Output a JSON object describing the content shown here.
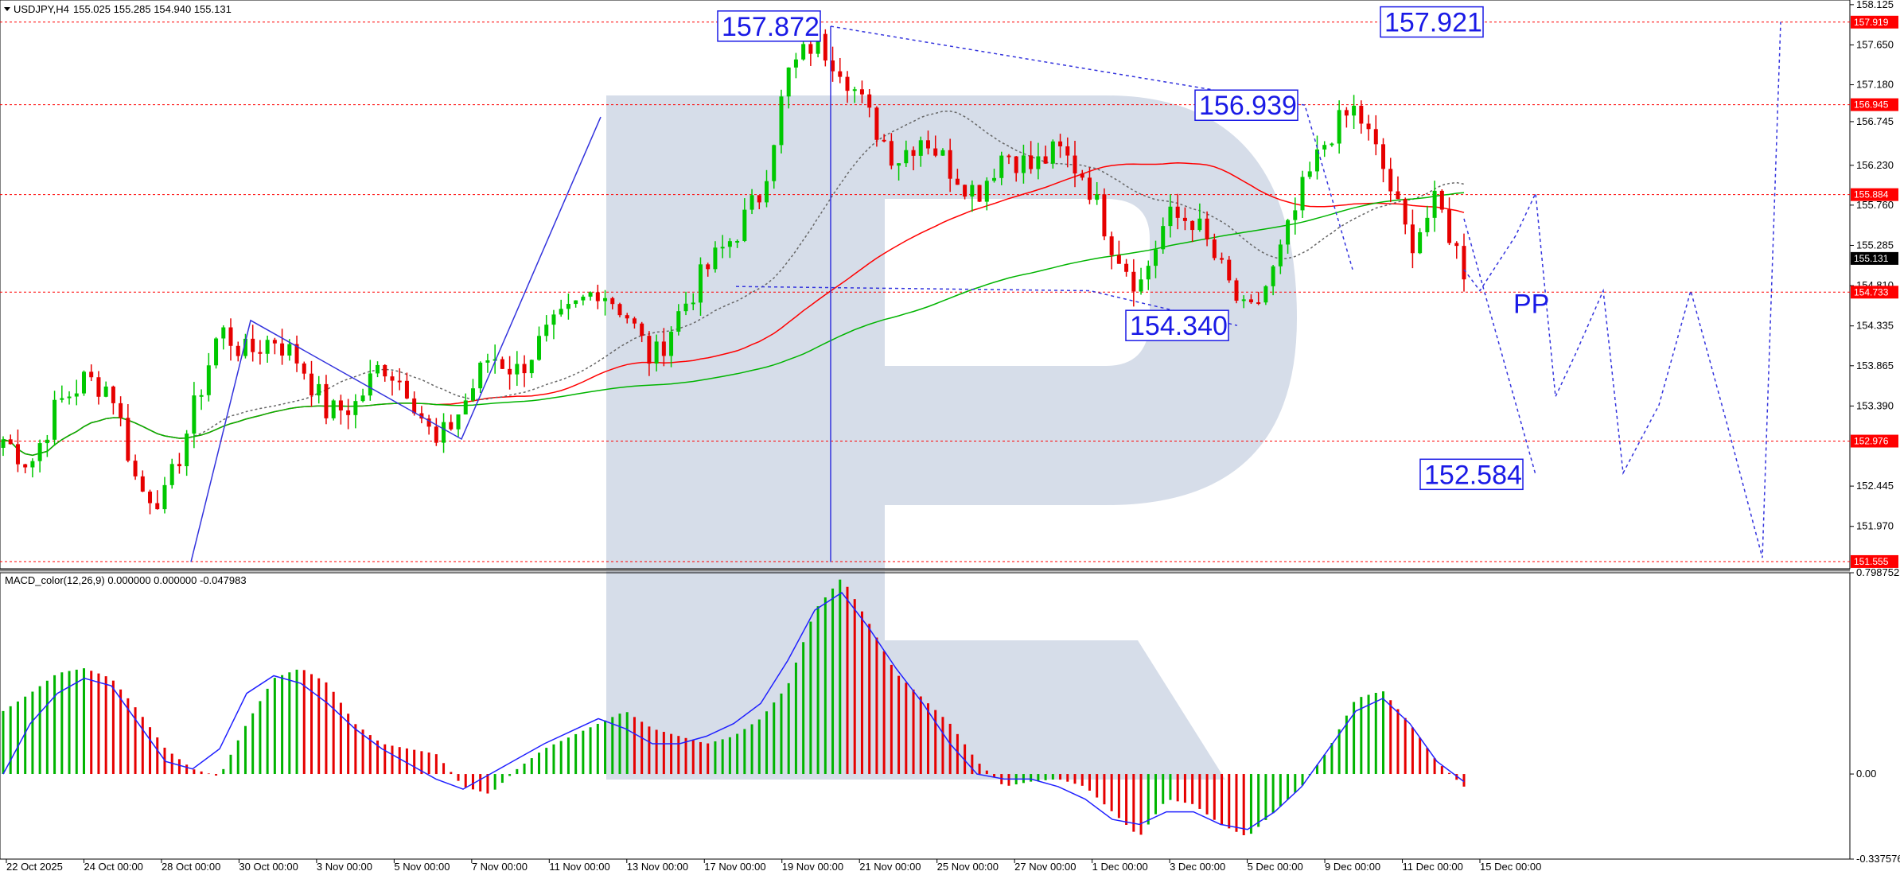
{
  "chart_data": [
    {
      "type": "candlestick",
      "title": "USDJPY,H4",
      "ohlc_header": "155.025 155.285 154.940 155.131",
      "yticks": [
        "158.125",
        "157.650",
        "157.180",
        "156.745",
        "156.230",
        "155.760",
        "155.285",
        "154.810",
        "154.335",
        "153.865",
        "153.390",
        "152.445",
        "151.970"
      ],
      "ylim": [
        151.47,
        158.18
      ],
      "xticks": [
        "22 Oct 2025",
        "24 Oct 00:00",
        "28 Oct 00:00",
        "30 Oct 00:00",
        "3 Nov 00:00",
        "5 Nov 00:00",
        "7 Nov 00:00",
        "11 Nov 00:00",
        "13 Nov 00:00",
        "17 Nov 00:00",
        "19 Nov 00:00",
        "21 Nov 00:00",
        "25 Nov 00:00",
        "27 Nov 00:00",
        "1 Dec 00:00",
        "3 Dec 00:00",
        "5 Dec 00:00",
        "9 Dec 00:00",
        "11 Dec 00:00",
        "15 Dec 00:00"
      ],
      "horizontal_levels": [
        {
          "value": 157.919,
          "label": "157.919"
        },
        {
          "value": 156.945,
          "label": "156.945"
        },
        {
          "value": 155.884,
          "label": "155.884"
        },
        {
          "value": 154.733,
          "label": "154.733"
        },
        {
          "value": 152.976,
          "label": "152.976"
        },
        {
          "value": 151.555,
          "label": "151.555"
        }
      ],
      "current_price": {
        "value": 155.131,
        "label": "155.131"
      },
      "annotations": [
        {
          "text": "157.872",
          "value": 157.872
        },
        {
          "text": "156.939",
          "value": 156.939
        },
        {
          "text": "154.340",
          "value": 154.34
        },
        {
          "text": "157.921",
          "value": 157.921
        },
        {
          "text": "152.584",
          "value": 152.584
        },
        {
          "text": "PP",
          "value": 154.6
        }
      ],
      "colors": {
        "bull": "#00c800",
        "bear": "#e60000",
        "ma_long": "#ff0000",
        "ma_short": "#00b400",
        "level": "#ff0000",
        "forecast": "#3333dd",
        "watermark": "#d6dde9"
      },
      "close_path": [
        153.0,
        152.7,
        153.4,
        153.7,
        153.6,
        152.4,
        152.3,
        153.3,
        154.3,
        154.0,
        154.2,
        153.9,
        153.3,
        153.4,
        153.9,
        153.6,
        152.9,
        153.4,
        154.0,
        153.8,
        154.2,
        154.5,
        154.8,
        154.5,
        153.9,
        154.5,
        155.0,
        155.4,
        155.9,
        157.3,
        157.7,
        157.4,
        156.8,
        156.3,
        156.6,
        156.2,
        155.9,
        156.4,
        156.2,
        156.4,
        156.1,
        155.3,
        154.8,
        155.6,
        155.6,
        155.0,
        154.4,
        155.0,
        155.9,
        156.6,
        156.9,
        156.2,
        155.3,
        155.8,
        155.0
      ]
    },
    {
      "type": "bar",
      "title": "MACD_color(12,26,9) 0.000000 0.000000 -0.047983",
      "yticks": [
        "0.798752",
        "0.00",
        "-0.337576"
      ],
      "ylim": [
        -0.3376,
        0.7988
      ],
      "histogram_path": [
        0.25,
        0.32,
        0.4,
        0.42,
        0.38,
        0.25,
        0.1,
        0.02,
        -0.01,
        0.2,
        0.38,
        0.42,
        0.36,
        0.2,
        0.12,
        0.1,
        0.08,
        -0.05,
        -0.08,
        0.02,
        0.1,
        0.15,
        0.2,
        0.25,
        0.18,
        0.15,
        0.12,
        0.15,
        0.22,
        0.35,
        0.65,
        0.78,
        0.6,
        0.4,
        0.3,
        0.2,
        0.05,
        -0.05,
        -0.03,
        -0.02,
        -0.05,
        -0.15,
        -0.25,
        -0.1,
        -0.12,
        -0.2,
        -0.25,
        -0.15,
        -0.05,
        0.1,
        0.3,
        0.33,
        0.2,
        0.05,
        -0.05
      ],
      "signal_path": [
        0.0,
        0.2,
        0.32,
        0.38,
        0.35,
        0.2,
        0.05,
        0.02,
        0.1,
        0.32,
        0.39,
        0.36,
        0.28,
        0.18,
        0.1,
        0.04,
        -0.02,
        -0.06,
        0.0,
        0.06,
        0.12,
        0.17,
        0.22,
        0.18,
        0.12,
        0.12,
        0.15,
        0.2,
        0.28,
        0.45,
        0.65,
        0.72,
        0.58,
        0.42,
        0.28,
        0.12,
        0.0,
        -0.02,
        -0.02,
        -0.05,
        -0.1,
        -0.18,
        -0.2,
        -0.15,
        -0.15,
        -0.2,
        -0.22,
        -0.15,
        -0.05,
        0.1,
        0.25,
        0.3,
        0.2,
        0.05,
        -0.03
      ]
    }
  ]
}
